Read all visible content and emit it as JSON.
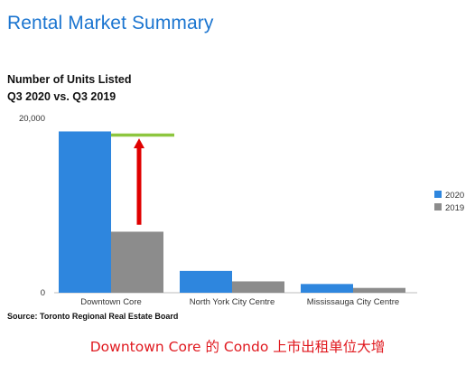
{
  "header": {
    "title": "Rental Market Summary"
  },
  "chart_data": {
    "type": "bar",
    "title_line1": "Number of Units Listed",
    "title_line2": "Q3 2020 vs. Q3 2019",
    "categories": [
      "Downtown Core",
      "North York City Centre",
      "Mississauga City Centre"
    ],
    "series": [
      {
        "name": "2020",
        "values": [
          18500,
          2500,
          1000
        ],
        "color": "#2e86de"
      },
      {
        "name": "2019",
        "values": [
          7000,
          1300,
          550
        ],
        "color": "#8c8c8c"
      }
    ],
    "yticks": [
      "20,000",
      "0"
    ],
    "ylim": [
      0,
      20000
    ],
    "legend_position": "right",
    "grid": false,
    "annotation": {
      "target_line_value": 18500,
      "target_line_color": "#8dc63f",
      "arrow_color": "#e00000",
      "arrow_from_value": 7800,
      "arrow_to_value": 17500
    }
  },
  "footer": {
    "source": "Source: Toronto Regional Real Estate Board",
    "caption": "Downtown Core 的 Condo 上市出租单位大增"
  }
}
